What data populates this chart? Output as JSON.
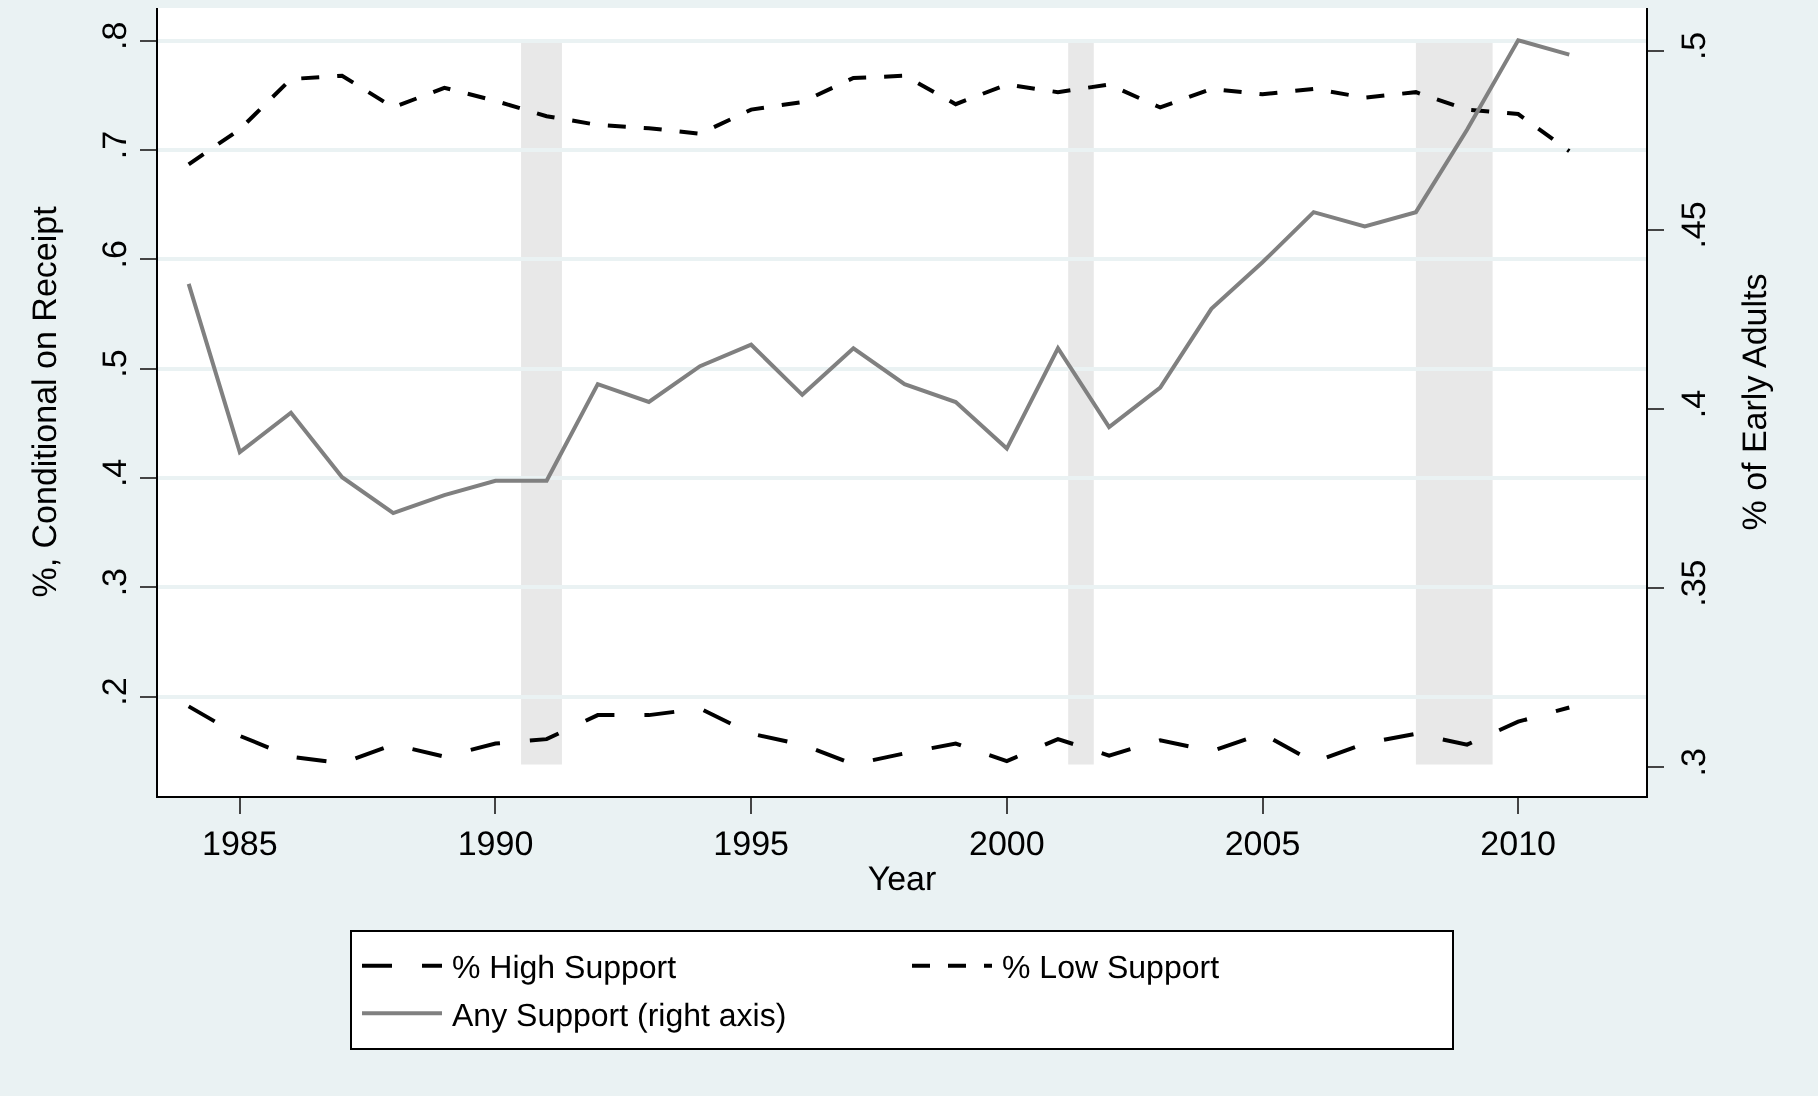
{
  "chart_data": {
    "type": "line",
    "xlabel": "Year",
    "ylabel": "%, Conditional on Receipt",
    "y2label": "% of Early Adults",
    "x": [
      1984,
      1985,
      1986,
      1987,
      1988,
      1989,
      1990,
      1991,
      1992,
      1993,
      1994,
      1995,
      1996,
      1997,
      1998,
      1999,
      2000,
      2001,
      2002,
      2003,
      2004,
      2005,
      2006,
      2007,
      2008,
      2009,
      2010,
      2011
    ],
    "series": [
      {
        "name": "% High Support",
        "color": "#000000",
        "line_style": "dashed",
        "values": [
          0.191,
          0.164,
          0.145,
          0.139,
          0.156,
          0.145,
          0.157,
          0.161,
          0.183,
          0.183,
          0.189,
          0.166,
          0.156,
          0.138,
          0.148,
          0.157,
          0.141,
          0.161,
          0.146,
          0.16,
          0.15,
          0.166,
          0.14,
          0.157,
          0.166,
          0.156,
          0.177,
          0.19
        ]
      },
      {
        "name": "% Low Support",
        "color": "#000000",
        "line_style": "dashed",
        "values": [
          0.687,
          0.719,
          0.765,
          0.768,
          0.739,
          0.757,
          0.745,
          0.731,
          0.723,
          0.72,
          0.715,
          0.737,
          0.744,
          0.766,
          0.768,
          0.742,
          0.76,
          0.753,
          0.76,
          0.739,
          0.756,
          0.751,
          0.756,
          0.748,
          0.753,
          0.737,
          0.733,
          0.699
        ]
      },
      {
        "name": "Any Support (right axis)",
        "color": "#808080",
        "line_style": "solid",
        "axis": "y2",
        "values": [
          0.435,
          0.388,
          0.399,
          0.381,
          0.371,
          0.376,
          0.38,
          0.38,
          0.407,
          0.402,
          0.412,
          0.418,
          0.404,
          0.417,
          0.407,
          0.402,
          0.389,
          0.417,
          0.395,
          0.406,
          0.428,
          0.441,
          0.455,
          0.451,
          0.455,
          0.478,
          0.503,
          0.499
        ]
      }
    ],
    "xlim": [
      1983.4,
      2012.5
    ],
    "xticks": [
      1985,
      1990,
      1995,
      2000,
      2005,
      2010
    ],
    "ylim": [
      0.109,
      0.83
    ],
    "yticks": [
      {
        "value": 0.2,
        "label": ".2"
      },
      {
        "value": 0.3,
        "label": ".3"
      },
      {
        "value": 0.4,
        "label": ".4"
      },
      {
        "value": 0.5,
        "label": ".5"
      },
      {
        "value": 0.6,
        "label": ".6"
      },
      {
        "value": 0.7,
        "label": ".7"
      },
      {
        "value": 0.8,
        "label": ".8"
      }
    ],
    "y2lim": [
      0.292,
      0.512
    ],
    "y2ticks": [
      {
        "value": 0.3,
        "label": ".3"
      },
      {
        "value": 0.35,
        "label": ".35"
      },
      {
        "value": 0.4,
        "label": ".4"
      },
      {
        "value": 0.45,
        "label": ".45"
      },
      {
        "value": 0.5,
        "label": ".5"
      }
    ],
    "bands": [
      {
        "axis": "x",
        "from": 1990.5,
        "to": 1991.3,
        "color": "#e8e8e8"
      },
      {
        "axis": "x",
        "from": 2001.2,
        "to": 2001.7,
        "color": "#e8e8e8"
      },
      {
        "axis": "x",
        "from": 2008.0,
        "to": 2009.5,
        "color": "#e8e8e8"
      }
    ],
    "grid": "y",
    "legend": "bottom",
    "marker": "none"
  }
}
